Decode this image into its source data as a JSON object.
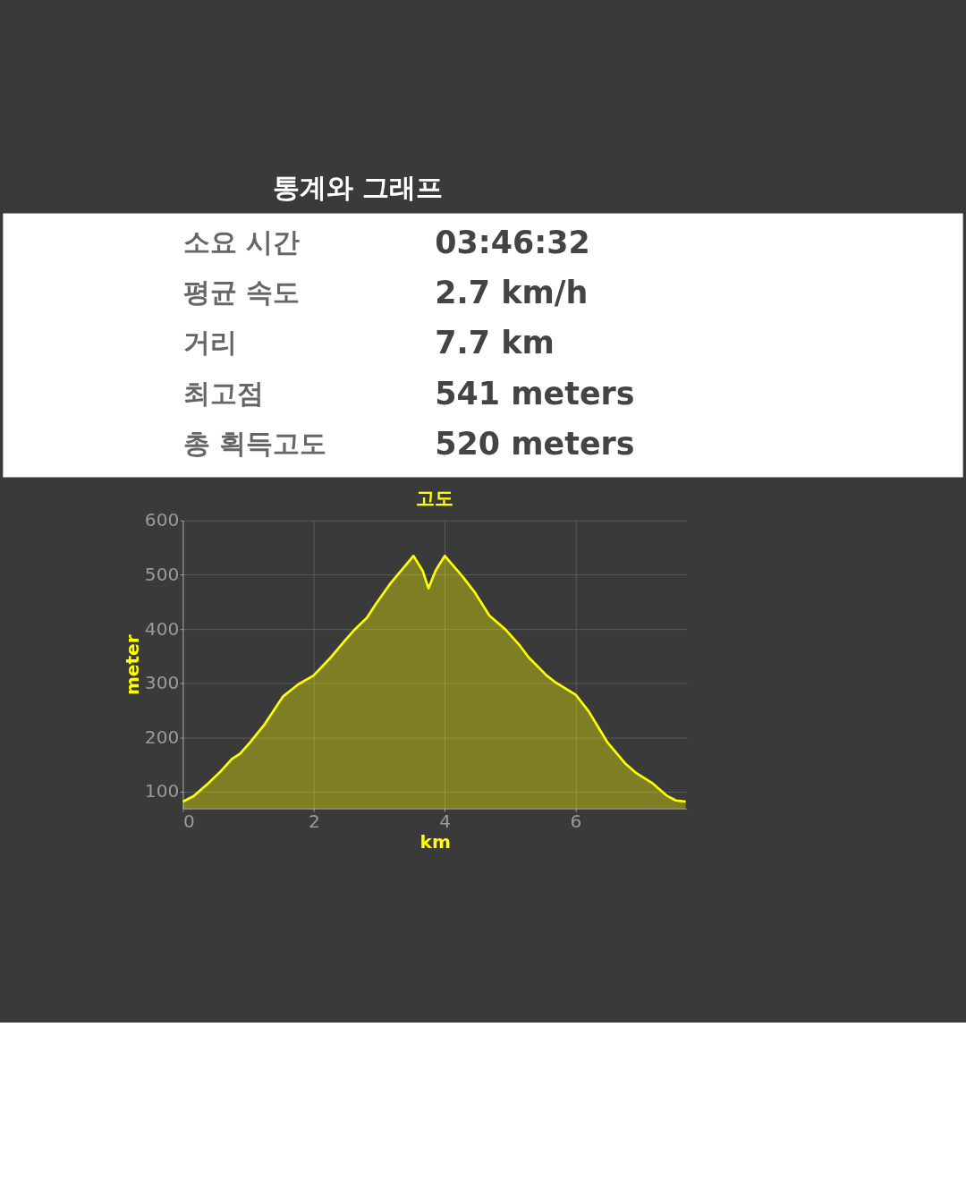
{
  "chart_data": [
    {
      "type": "other",
      "title": "통계와 그래프",
      "annotations": [
        "소요 시간",
        "03:46:32",
        "평균 속도",
        "2.7 km/h",
        "거리",
        "7.7 km",
        "최고점",
        "541 meters",
        "총 획득고도",
        "520 meters"
      ]
    },
    {
      "type": "area",
      "title": "고도",
      "xlabel": "km",
      "ylabel": "meter",
      "x": [
        0,
        0.16,
        0.38,
        0.57,
        0.75,
        0.87,
        1.03,
        1.25,
        1.53,
        1.76,
        1.99,
        2.26,
        2.49,
        2.63,
        2.81,
        2.95,
        3.18,
        3.41,
        3.52,
        3.66,
        3.75,
        3.86,
        4.0,
        4.27,
        4.45,
        4.68,
        4.92,
        5.15,
        5.28,
        5.56,
        5.7,
        6.0,
        6.2,
        6.48,
        6.75,
        6.93,
        7.16,
        7.39,
        7.53,
        7.68
      ],
      "series": [
        {
          "color": "#ffff00",
          "values": [
            82,
            92,
            115,
            137,
            161,
            170,
            192,
            225,
            276,
            298,
            314,
            348,
            381,
            400,
            421,
            447,
            486,
            519,
            535,
            508,
            475,
            508,
            535,
            497,
            469,
            425,
            400,
            369,
            348,
            314,
            301,
            279,
            248,
            192,
            153,
            134,
            117,
            93,
            84,
            82
          ]
        }
      ],
      "xlim": [
        0,
        7.7
      ],
      "ylim": [
        69,
        600
      ],
      "xticks": [
        0,
        2,
        4,
        6
      ],
      "yticks": [
        100,
        200,
        300,
        400,
        500,
        600
      ],
      "grid": true
    }
  ]
}
